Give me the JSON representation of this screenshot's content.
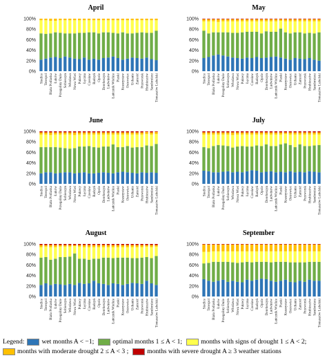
{
  "legend": {
    "prefix": "Legend:",
    "items": [
      {
        "key": "wet",
        "label": "wet months A < −1;",
        "color": "#2e75b6"
      },
      {
        "key": "optimal",
        "label": "optimal months 1 ≤ A < 1;",
        "color": "#70ad47"
      },
      {
        "key": "signs",
        "label": "months with signs of drought 1 ≤ A < 2;",
        "color": "#ffff4d"
      },
      {
        "key": "moderate",
        "label": "months with moderate drought 2 ≤ A < 3 ;",
        "color": "#ffc000"
      },
      {
        "key": "severe",
        "label": "months with severe drought A ≥ 3 weather stations",
        "color": "#c00000"
      }
    ]
  },
  "chart_data": [
    {
      "type": "bar",
      "stacked": true,
      "title": "April",
      "ylim": [
        0,
        100
      ],
      "yticks": [
        "0%",
        "20%",
        "40%",
        "60%",
        "80%",
        "100%"
      ],
      "categories": [
        "Siedlce",
        "Terespol",
        "Biała Podlaska",
        "Łuków",
        "Przegaliny Duże",
        "Sobieszyn",
        "Włodawa",
        "Nowa Wieś",
        "Puławy",
        "Łęczna",
        "Czesław",
        "Radzyń",
        "Opole",
        "Derebeszyn",
        "Ludwinów",
        "Łańcznik Wielkie",
        "Piaski",
        "Krasnystaw",
        "Ostrowiec",
        "Uchanie",
        "Zamość",
        "Przeworsk",
        "Hrubieszów",
        "Sandomierz",
        "Tomaszów Lubelski"
      ],
      "series": [
        {
          "key": "wet",
          "values": [
            22,
            24,
            26,
            27,
            25,
            28,
            26,
            24,
            23,
            26,
            22,
            24,
            22,
            25,
            26,
            28,
            25,
            22,
            24,
            26,
            25,
            24,
            26,
            23,
            21
          ]
        },
        {
          "key": "optimal",
          "values": [
            50,
            47,
            46,
            47,
            48,
            44,
            46,
            48,
            50,
            47,
            52,
            50,
            50,
            49,
            48,
            45,
            47,
            52,
            48,
            46,
            48,
            50,
            47,
            50,
            56
          ]
        },
        {
          "key": "signs",
          "values": [
            25,
            26,
            24,
            22,
            24,
            25,
            25,
            25,
            24,
            24,
            23,
            23,
            25,
            23,
            23,
            24,
            25,
            23,
            25,
            25,
            24,
            23,
            24,
            24,
            20
          ]
        },
        {
          "key": "moderate",
          "values": [
            3,
            3,
            4,
            4,
            3,
            3,
            3,
            3,
            3,
            3,
            3,
            3,
            3,
            3,
            3,
            3,
            3,
            3,
            3,
            3,
            3,
            3,
            3,
            3,
            3
          ]
        },
        {
          "key": "severe",
          "values": [
            0,
            0,
            0,
            0,
            0,
            0,
            0,
            0,
            0,
            0,
            0,
            0,
            0,
            0,
            0,
            0,
            0,
            0,
            0,
            0,
            0,
            0,
            0,
            0,
            0
          ]
        }
      ]
    },
    {
      "type": "bar",
      "stacked": true,
      "title": "May",
      "ylim": [
        0,
        100
      ],
      "yticks": [
        "0%",
        "20%",
        "40%",
        "60%",
        "80%",
        "100%"
      ],
      "categories": [
        "Siedlce",
        "Terespol",
        "Biała Podlaska",
        "Łuków",
        "Przegaliny Duże",
        "Sobieszyn",
        "Włodawa",
        "Nowa Wieś",
        "Puławy",
        "Łęczna",
        "Czesław",
        "Radzyń",
        "Opole",
        "Derebeszyn",
        "Ludwinów",
        "Łańcznik Wielkie",
        "Piaski",
        "Krasnystaw",
        "Ostrowiec",
        "Uchanie",
        "Zamość",
        "Przeworsk",
        "Hrubieszów",
        "Sandomierz",
        "Tomaszów Lubelski"
      ],
      "series": [
        {
          "key": "wet",
          "values": [
            25,
            27,
            30,
            32,
            30,
            28,
            26,
            25,
            24,
            26,
            25,
            27,
            25,
            26,
            27,
            28,
            26,
            24,
            22,
            25,
            24,
            23,
            25,
            22,
            20
          ]
        },
        {
          "key": "optimal",
          "values": [
            52,
            45,
            44,
            42,
            44,
            46,
            47,
            48,
            50,
            49,
            50,
            48,
            47,
            50,
            48,
            47,
            55,
            50,
            50,
            49,
            50,
            49,
            48,
            50,
            54
          ]
        },
        {
          "key": "signs",
          "values": [
            18,
            23,
            21,
            20,
            21,
            21,
            22,
            22,
            21,
            20,
            20,
            20,
            23,
            19,
            20,
            20,
            15,
            21,
            23,
            21,
            21,
            23,
            22,
            23,
            21
          ]
        },
        {
          "key": "moderate",
          "values": [
            4,
            4,
            4,
            5,
            4,
            4,
            4,
            4,
            4,
            4,
            4,
            4,
            4,
            4,
            4,
            4,
            3,
            4,
            4,
            4,
            4,
            4,
            4,
            4,
            4
          ]
        },
        {
          "key": "severe",
          "values": [
            1,
            1,
            1,
            1,
            1,
            1,
            1,
            1,
            1,
            1,
            1,
            1,
            1,
            1,
            1,
            1,
            1,
            1,
            1,
            1,
            1,
            1,
            1,
            1,
            1
          ]
        }
      ]
    },
    {
      "type": "bar",
      "stacked": true,
      "title": "June",
      "ylim": [
        0,
        100
      ],
      "yticks": [
        "0%",
        "20%",
        "40%",
        "60%",
        "80%",
        "100%"
      ],
      "categories": [
        "Siedlce",
        "Terespol",
        "Biała Podlaska",
        "Łuków",
        "Przegaliny Duże",
        "Sobieszyn",
        "Włodawa",
        "Nowa Wieś",
        "Puławy",
        "Łęczna",
        "Czesław",
        "Radzyń",
        "Opole",
        "Derebeszyn",
        "Ludwinów",
        "Łańcznik Wielkie",
        "Piaski",
        "Krasnystaw",
        "Ostrowiec",
        "Uchanie",
        "Zamość",
        "Przeworsk",
        "Hrubieszów",
        "Sandomierz",
        "Tomaszów Lubelski"
      ],
      "series": [
        {
          "key": "wet",
          "values": [
            20,
            22,
            22,
            20,
            21,
            22,
            22,
            20,
            21,
            22,
            20,
            20,
            21,
            22,
            21,
            20,
            22,
            23,
            22,
            21,
            20,
            22,
            21,
            22,
            21
          ]
        },
        {
          "key": "optimal",
          "values": [
            50,
            48,
            48,
            50,
            48,
            46,
            45,
            48,
            50,
            49,
            52,
            50,
            48,
            49,
            50,
            55,
            48,
            47,
            50,
            48,
            50,
            48,
            52,
            50,
            55
          ]
        },
        {
          "key": "signs",
          "values": [
            24,
            24,
            23,
            24,
            25,
            26,
            27,
            25,
            23,
            23,
            22,
            24,
            25,
            23,
            23,
            19,
            24,
            24,
            22,
            25,
            24,
            24,
            22,
            22,
            19
          ]
        },
        {
          "key": "moderate",
          "values": [
            4,
            4,
            5,
            4,
            4,
            4,
            4,
            5,
            4,
            4,
            4,
            4,
            4,
            4,
            4,
            4,
            4,
            4,
            4,
            4,
            4,
            4,
            4,
            4,
            4
          ]
        },
        {
          "key": "severe",
          "values": [
            2,
            2,
            2,
            2,
            2,
            2,
            2,
            2,
            2,
            2,
            2,
            2,
            2,
            2,
            2,
            2,
            2,
            2,
            2,
            2,
            2,
            2,
            1,
            2,
            1
          ]
        }
      ]
    },
    {
      "type": "bar",
      "stacked": true,
      "title": "July",
      "ylim": [
        0,
        100
      ],
      "yticks": [
        "0%",
        "20%",
        "40%",
        "60%",
        "80%",
        "100%"
      ],
      "categories": [
        "Siedlce",
        "Terespol",
        "Biała Podlaska",
        "Łuków",
        "Przegaliny Duże",
        "Sobieszyn",
        "Włodawa",
        "Nowa Wieś",
        "Puławy",
        "Łęczna",
        "Czesław",
        "Radzyń",
        "Opole",
        "Derebeszyn",
        "Ludwinów",
        "Łańcznik Wielkie",
        "Piaski",
        "Krasnystaw",
        "Ostrowiec",
        "Uchanie",
        "Zamość",
        "Przeworsk",
        "Hrubieszów",
        "Sandomierz",
        "Tomaszów Lubelski"
      ],
      "series": [
        {
          "key": "wet",
          "values": [
            25,
            24,
            22,
            22,
            23,
            24,
            22,
            23,
            22,
            24,
            26,
            25,
            22,
            23,
            24,
            22,
            23,
            22,
            24,
            22,
            23,
            22,
            24,
            23,
            22
          ]
        },
        {
          "key": "optimal",
          "values": [
            45,
            44,
            50,
            52,
            50,
            48,
            47,
            48,
            50,
            47,
            45,
            48,
            50,
            52,
            48,
            50,
            52,
            55,
            50,
            48,
            52,
            50,
            48,
            50,
            52
          ]
        },
        {
          "key": "signs",
          "values": [
            24,
            26,
            22,
            20,
            21,
            22,
            24,
            23,
            22,
            23,
            23,
            21,
            22,
            19,
            22,
            22,
            19,
            18,
            20,
            24,
            19,
            22,
            22,
            21,
            20
          ]
        },
        {
          "key": "moderate",
          "values": [
            4,
            4,
            4,
            4,
            4,
            4,
            5,
            4,
            4,
            4,
            4,
            4,
            4,
            4,
            4,
            4,
            4,
            3,
            4,
            4,
            4,
            4,
            4,
            4,
            4
          ]
        },
        {
          "key": "severe",
          "values": [
            2,
            2,
            2,
            2,
            2,
            2,
            2,
            2,
            2,
            2,
            2,
            2,
            2,
            2,
            2,
            2,
            2,
            2,
            2,
            2,
            2,
            2,
            2,
            2,
            2
          ]
        }
      ]
    },
    {
      "type": "bar",
      "stacked": true,
      "title": "August",
      "ylim": [
        0,
        100
      ],
      "yticks": [
        "0%",
        "20%",
        "40%",
        "60%",
        "80%",
        "100%"
      ],
      "categories": [
        "Siedlce",
        "Terespol",
        "Biała Podlaska",
        "Łuków",
        "Przegaliny Duże",
        "Sobieszyn",
        "Włodawa",
        "Nowa Wieś",
        "Puławy",
        "Łęczna",
        "Czesław",
        "Radzyń",
        "Opole",
        "Derebeszyn",
        "Ludwinów",
        "Łańcznik Wielkie",
        "Piaski",
        "Krasnystaw",
        "Ostrowiec",
        "Uchanie",
        "Zamość",
        "Przeworsk",
        "Hrubieszów",
        "Sandomierz",
        "Tomaszów Lubelski"
      ],
      "series": [
        {
          "key": "wet",
          "values": [
            22,
            25,
            22,
            24,
            23,
            22,
            24,
            22,
            26,
            24,
            25,
            30,
            25,
            24,
            22,
            25,
            24,
            22,
            24,
            26,
            25,
            24,
            30,
            25,
            22
          ]
        },
        {
          "key": "optimal",
          "values": [
            52,
            50,
            48,
            48,
            52,
            53,
            52,
            60,
            46,
            48,
            45,
            42,
            47,
            50,
            52,
            48,
            50,
            52,
            50,
            47,
            48,
            50,
            45,
            48,
            55
          ]
        },
        {
          "key": "signs",
          "values": [
            20,
            20,
            24,
            22,
            20,
            20,
            19,
            14,
            23,
            22,
            24,
            22,
            22,
            20,
            20,
            21,
            20,
            20,
            20,
            21,
            21,
            20,
            20,
            21,
            18
          ]
        },
        {
          "key": "moderate",
          "values": [
            4,
            3,
            4,
            4,
            3,
            3,
            3,
            2,
            3,
            4,
            4,
            4,
            4,
            4,
            4,
            4,
            4,
            4,
            4,
            4,
            4,
            4,
            3,
            4,
            3
          ]
        },
        {
          "key": "severe",
          "values": [
            2,
            2,
            2,
            2,
            2,
            2,
            2,
            2,
            2,
            2,
            2,
            2,
            2,
            2,
            2,
            2,
            2,
            2,
            2,
            2,
            2,
            2,
            2,
            2,
            2
          ]
        }
      ]
    },
    {
      "type": "bar",
      "stacked": true,
      "title": "September",
      "ylim": [
        0,
        100
      ],
      "yticks": [
        "0%",
        "20%",
        "40%",
        "60%",
        "80%",
        "100%"
      ],
      "categories": [
        "Siedlce",
        "Terespol",
        "Biała Podlaska",
        "Łuków",
        "Przegaliny Duże",
        "Sobieszyn",
        "Włodawa",
        "Nowa Wieś",
        "Puławy",
        "Łęczna",
        "Czesław",
        "Radzyń",
        "Opole",
        "Derebeszyn",
        "Ludwinów",
        "Łańcznik Wielkie",
        "Piaski",
        "Krasnystaw",
        "Ostrowiec",
        "Uchanie",
        "Zamość",
        "Przeworsk",
        "Hrubieszów",
        "Sandomierz",
        "Tomaszów Lubelski"
      ],
      "series": [
        {
          "key": "wet",
          "values": [
            33,
            30,
            28,
            30,
            32,
            28,
            30,
            28,
            27,
            32,
            30,
            32,
            34,
            33,
            30,
            28,
            30,
            32,
            28,
            27,
            30,
            28,
            32,
            30,
            30
          ]
        },
        {
          "key": "optimal",
          "values": [
            30,
            34,
            38,
            36,
            34,
            38,
            35,
            36,
            38,
            34,
            35,
            34,
            32,
            33,
            35,
            38,
            36,
            34,
            37,
            38,
            35,
            37,
            34,
            36,
            36
          ]
        },
        {
          "key": "signs",
          "values": [
            22,
            21,
            20,
            20,
            20,
            20,
            21,
            22,
            21,
            20,
            21,
            20,
            20,
            20,
            21,
            20,
            20,
            20,
            21,
            21,
            21,
            21,
            20,
            20,
            20
          ]
        },
        {
          "key": "moderate",
          "values": [
            14,
            14,
            13,
            13,
            13,
            13,
            13,
            13,
            13,
            13,
            13,
            13,
            13,
            13,
            13,
            13,
            13,
            13,
            13,
            13,
            13,
            13,
            13,
            13,
            13
          ]
        },
        {
          "key": "severe",
          "values": [
            1,
            1,
            1,
            1,
            1,
            1,
            1,
            1,
            1,
            1,
            1,
            1,
            1,
            1,
            1,
            1,
            1,
            1,
            1,
            1,
            1,
            1,
            1,
            1,
            1
          ]
        }
      ]
    }
  ]
}
